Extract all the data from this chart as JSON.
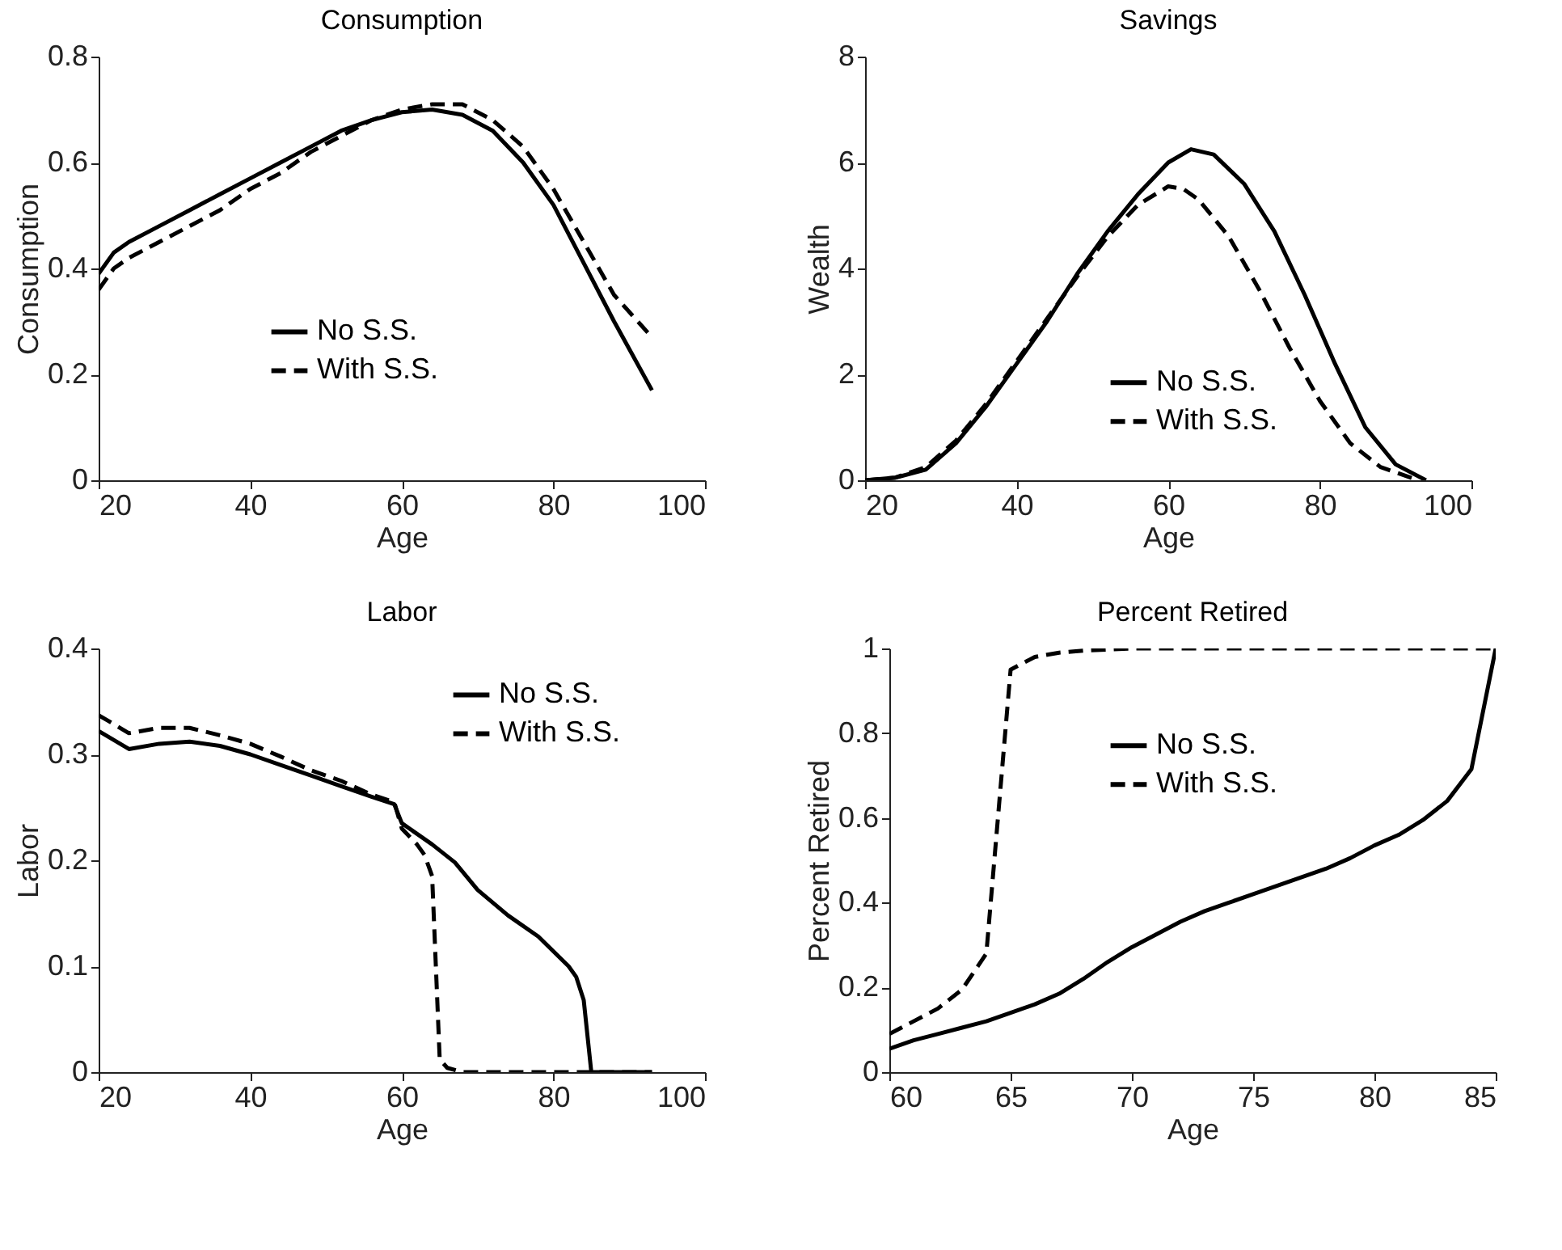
{
  "chart_data": [
    {
      "type": "line",
      "title": "Consumption",
      "xlabel": "Age",
      "ylabel": "Consumption",
      "xlim": [
        20,
        100
      ],
      "xticks": [
        20,
        40,
        60,
        80,
        100
      ],
      "ylim": [
        0,
        0.8
      ],
      "yticks": [
        0,
        0.2,
        0.4,
        0.6,
        0.8
      ],
      "legend": "bottom",
      "series": [
        {
          "name": "No S.S.",
          "color": "#000000",
          "line_style": "solid",
          "x": [
            20,
            22,
            24,
            28,
            32,
            36,
            40,
            44,
            48,
            52,
            56,
            60,
            64,
            68,
            72,
            76,
            80,
            84,
            88,
            93
          ],
          "values": [
            0.39,
            0.43,
            0.45,
            0.48,
            0.51,
            0.54,
            0.57,
            0.6,
            0.63,
            0.66,
            0.68,
            0.695,
            0.7,
            0.69,
            0.66,
            0.6,
            0.52,
            0.41,
            0.3,
            0.17
          ]
        },
        {
          "name": "With S.S.",
          "color": "#000000",
          "line_style": "dashed",
          "x": [
            20,
            22,
            24,
            28,
            32,
            36,
            40,
            44,
            48,
            52,
            56,
            60,
            64,
            68,
            72,
            76,
            80,
            84,
            88,
            93
          ],
          "values": [
            0.36,
            0.4,
            0.42,
            0.45,
            0.48,
            0.51,
            0.55,
            0.58,
            0.62,
            0.65,
            0.68,
            0.7,
            0.71,
            0.71,
            0.68,
            0.63,
            0.55,
            0.45,
            0.35,
            0.27
          ]
        }
      ]
    },
    {
      "type": "line",
      "title": "Savings",
      "xlabel": "Age",
      "ylabel": "Wealth",
      "xlim": [
        20,
        100
      ],
      "xticks": [
        20,
        40,
        60,
        80,
        100
      ],
      "ylim": [
        0,
        8
      ],
      "yticks": [
        0,
        2,
        4,
        6,
        8
      ],
      "legend": "bottom right",
      "series": [
        {
          "name": "No S.S.",
          "color": "#000000",
          "line_style": "solid",
          "x": [
            20,
            24,
            28,
            32,
            36,
            40,
            44,
            48,
            52,
            56,
            60,
            63,
            66,
            70,
            74,
            78,
            82,
            86,
            90,
            94
          ],
          "values": [
            0,
            0.05,
            0.2,
            0.7,
            1.4,
            2.2,
            3.0,
            3.9,
            4.7,
            5.4,
            6.0,
            6.25,
            6.15,
            5.6,
            4.7,
            3.5,
            2.2,
            1.0,
            0.3,
            0
          ]
        },
        {
          "name": "With S.S.",
          "color": "#000000",
          "line_style": "dashed",
          "x": [
            20,
            24,
            28,
            32,
            36,
            40,
            44,
            48,
            52,
            56,
            60,
            62,
            64,
            68,
            72,
            76,
            80,
            84,
            88,
            93
          ],
          "values": [
            0,
            0.05,
            0.25,
            0.75,
            1.45,
            2.25,
            3.05,
            3.85,
            4.6,
            5.2,
            5.55,
            5.5,
            5.3,
            4.6,
            3.6,
            2.5,
            1.5,
            0.7,
            0.25,
            0
          ]
        }
      ]
    },
    {
      "type": "line",
      "title": "Labor",
      "xlabel": "Age",
      "ylabel": "Labor",
      "xlim": [
        20,
        100
      ],
      "xticks": [
        20,
        40,
        60,
        80,
        100
      ],
      "ylim": [
        0,
        0.4
      ],
      "yticks": [
        0,
        0.1,
        0.2,
        0.3,
        0.4
      ],
      "legend": "top right",
      "series": [
        {
          "name": "No S.S.",
          "color": "#000000",
          "line_style": "solid",
          "x": [
            20,
            24,
            28,
            32,
            36,
            40,
            44,
            48,
            52,
            56,
            59,
            60,
            64,
            67,
            70,
            74,
            78,
            82,
            83,
            84,
            85,
            93
          ],
          "values": [
            0.322,
            0.305,
            0.31,
            0.312,
            0.308,
            0.3,
            0.29,
            0.28,
            0.27,
            0.26,
            0.253,
            0.235,
            0.215,
            0.198,
            0.172,
            0.148,
            0.128,
            0.1,
            0.09,
            0.068,
            0,
            0
          ]
        },
        {
          "name": "With S.S.",
          "color": "#000000",
          "line_style": "dashed",
          "x": [
            20,
            24,
            28,
            32,
            36,
            40,
            44,
            48,
            52,
            56,
            59,
            60,
            62,
            63,
            64,
            65,
            66,
            68,
            93
          ],
          "values": [
            0.337,
            0.32,
            0.325,
            0.325,
            0.318,
            0.31,
            0.298,
            0.285,
            0.275,
            0.262,
            0.255,
            0.23,
            0.215,
            0.205,
            0.185,
            0.012,
            0.004,
            0,
            0
          ]
        }
      ]
    },
    {
      "type": "line",
      "title": "Percent Retired",
      "xlabel": "Age",
      "ylabel": "Percent Retired",
      "xlim": [
        60,
        85
      ],
      "xticks": [
        60,
        65,
        70,
        75,
        80,
        85
      ],
      "ylim": [
        0,
        1
      ],
      "yticks": [
        0,
        0.2,
        0.4,
        0.6,
        0.8,
        1
      ],
      "legend": "top",
      "series": [
        {
          "name": "No S.S.",
          "color": "#000000",
          "line_style": "solid",
          "x": [
            60,
            61,
            62,
            63,
            64,
            65,
            66,
            67,
            68,
            69,
            70,
            71,
            72,
            73,
            74,
            75,
            76,
            77,
            78,
            79,
            80,
            81,
            82,
            83,
            84,
            85
          ],
          "values": [
            0.055,
            0.075,
            0.09,
            0.105,
            0.12,
            0.14,
            0.16,
            0.185,
            0.22,
            0.26,
            0.295,
            0.325,
            0.355,
            0.38,
            0.4,
            0.42,
            0.44,
            0.46,
            0.48,
            0.505,
            0.535,
            0.56,
            0.595,
            0.64,
            0.715,
            1.0
          ]
        },
        {
          "name": "With S.S.",
          "color": "#000000",
          "line_style": "dashed",
          "x": [
            60,
            61,
            62,
            63,
            64,
            65,
            66,
            67,
            68,
            70,
            85
          ],
          "values": [
            0.09,
            0.12,
            0.15,
            0.195,
            0.28,
            0.95,
            0.98,
            0.99,
            0.995,
            1,
            1
          ]
        }
      ]
    }
  ]
}
